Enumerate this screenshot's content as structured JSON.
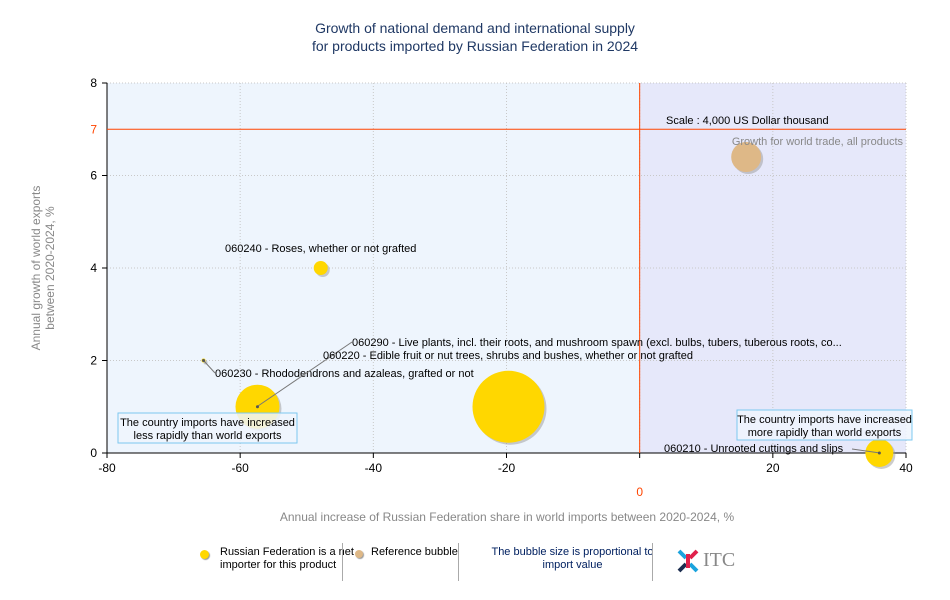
{
  "chart_data": {
    "type": "scatter",
    "title": [
      "Growth of national demand and international supply",
      "for products imported by Russian Federation in 2024"
    ],
    "xlabel": "Annual increase of Russian Federation share in world imports between 2020-2024, %",
    "ylabel": [
      "Annual growth of world exports",
      "between 2020-2024, %"
    ],
    "xlim": [
      -80,
      40
    ],
    "ylim": [
      0,
      8
    ],
    "xticks": [
      "-80",
      "-60",
      "-40",
      "-20",
      "0",
      "20",
      "40"
    ],
    "yticks": [
      "0",
      "2",
      "4",
      "6",
      "8"
    ],
    "reference_line_y": {
      "value": 7,
      "label": "7"
    },
    "reference_line_x": {
      "value": 0,
      "label": "0"
    },
    "grid": true,
    "scale_note": "Scale : 4,000 US Dollar thousand",
    "quadrant_left_note": "The country imports have increased less rapidly than world exports",
    "quadrant_right_note": "The country imports have increased more rapidly than world exports",
    "points": [
      {
        "label": "060240 - Roses, whether or not grafted",
        "x": -47.9,
        "y": 4.0,
        "size": 7,
        "kind": "net-importer"
      },
      {
        "label": "060230 - Rhododendrons and azaleas, grafted or not",
        "x": -65.5,
        "y": 2.0,
        "size": 2,
        "kind": "net-importer"
      },
      {
        "label": "060290 - Live plants, incl. their roots, and mushroom spawn (excl. bulbs, tubers, tuberous roots, co...",
        "x": -57.4,
        "y": 1.0,
        "size": 22,
        "kind": "net-importer"
      },
      {
        "label": "060220 - Edible fruit or nut trees, shrubs and bushes, whether or not grafted",
        "x": -19.7,
        "y": 1.0,
        "size": 36,
        "kind": "net-importer"
      },
      {
        "label": "060210 - Unrooted cuttings and slips",
        "x": 36.0,
        "y": 0.0,
        "size": 14,
        "kind": "net-importer"
      },
      {
        "label": "Growth for world trade, all products",
        "x": 16.0,
        "y": 6.4,
        "size": 15,
        "kind": "reference"
      }
    ],
    "colors": {
      "net-importer": "#FFD700",
      "reference": "#DEB887",
      "refline": "#FF4500",
      "left_bg": "#EEF5FD",
      "right_bg": "#E6E8FA"
    }
  },
  "legend": {
    "net_importer": "Russian Federation is a net importer for this product",
    "reference": "Reference bubble",
    "size_note": "The bubble size is proportional to import value",
    "logo_text": "ITC"
  }
}
